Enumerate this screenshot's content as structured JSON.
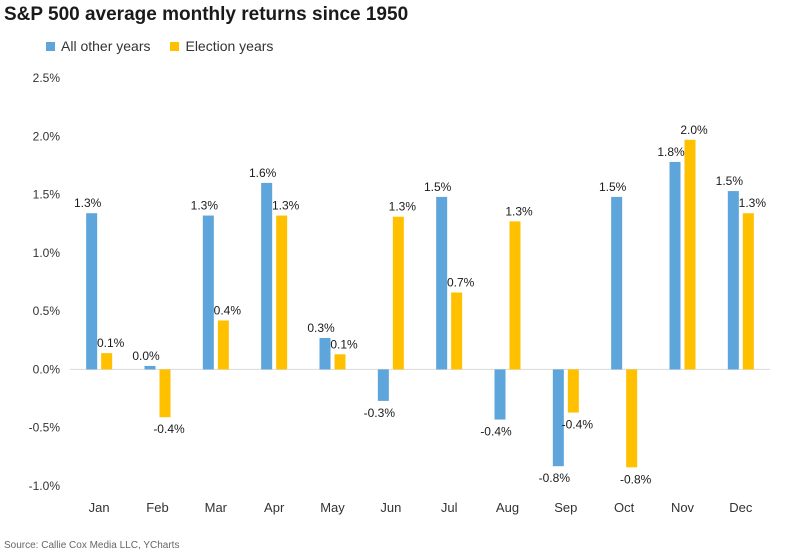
{
  "chart_data": {
    "type": "bar",
    "title": "S&P 500 average monthly returns since 1950",
    "xlabel": "",
    "ylabel": "",
    "ylim": [
      -1.0,
      2.5
    ],
    "yticks": [
      "-1.0%",
      "-0.5%",
      "0.0%",
      "0.5%",
      "1.0%",
      "1.5%",
      "2.0%",
      "2.5%"
    ],
    "ytick_values": [
      -1.0,
      -0.5,
      0.0,
      0.5,
      1.0,
      1.5,
      2.0,
      2.5
    ],
    "categories": [
      "Jan",
      "Feb",
      "Mar",
      "Apr",
      "May",
      "Jun",
      "Jul",
      "Aug",
      "Sep",
      "Oct",
      "Nov",
      "Dec"
    ],
    "series": [
      {
        "name": "All other years",
        "color": "#5DA5DA",
        "values": [
          1.34,
          0.03,
          1.32,
          1.6,
          0.27,
          -0.27,
          1.48,
          -0.43,
          -0.83,
          1.48,
          1.78,
          1.53
        ],
        "labels": [
          "1.3%",
          "0.0%",
          "1.3%",
          "1.6%",
          "0.3%",
          "-0.3%",
          "1.5%",
          "-0.4%",
          "-0.8%",
          "1.5%",
          "1.8%",
          "1.5%"
        ]
      },
      {
        "name": "Election years",
        "color": "#FFC000",
        "values": [
          0.14,
          -0.41,
          0.42,
          1.32,
          0.13,
          1.31,
          0.66,
          1.27,
          -0.37,
          -0.84,
          1.97,
          1.34
        ],
        "labels": [
          "0.1%",
          "-0.4%",
          "0.4%",
          "1.3%",
          "0.1%",
          "1.3%",
          "0.7%",
          "1.3%",
          "-0.4%",
          "-0.8%",
          "2.0%",
          "1.3%"
        ]
      }
    ],
    "legend_position": "top-left",
    "grid": false
  },
  "source": "Source: Callie Cox Media LLC, YCharts"
}
